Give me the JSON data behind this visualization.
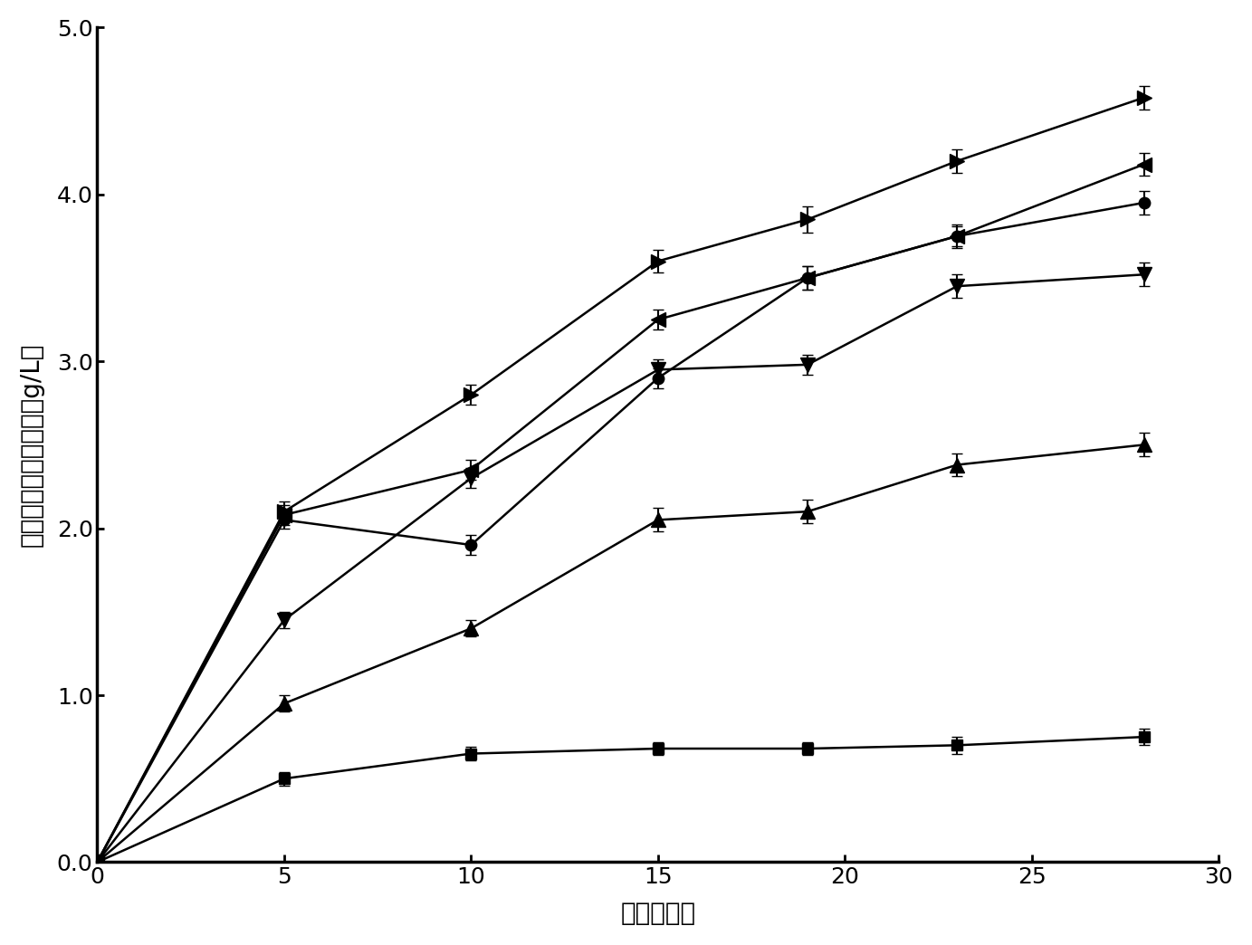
{
  "series": [
    {
      "name": "right_triangle_series",
      "marker": ">",
      "x": [
        0,
        5,
        10,
        15,
        19,
        23,
        28
      ],
      "y": [
        0,
        2.1,
        2.8,
        3.6,
        3.85,
        4.2,
        4.58
      ],
      "yerr": [
        0,
        0.06,
        0.06,
        0.07,
        0.08,
        0.07,
        0.07
      ]
    },
    {
      "name": "left_triangle_series",
      "marker": "<",
      "x": [
        0,
        5,
        10,
        15,
        19,
        23,
        28
      ],
      "y": [
        0,
        2.08,
        2.35,
        3.25,
        3.5,
        3.75,
        4.18
      ],
      "yerr": [
        0,
        0.06,
        0.06,
        0.06,
        0.07,
        0.07,
        0.07
      ]
    },
    {
      "name": "circle_series",
      "marker": "o",
      "x": [
        0,
        5,
        10,
        15,
        19,
        23,
        28
      ],
      "y": [
        0,
        2.05,
        1.9,
        2.9,
        3.5,
        3.75,
        3.95
      ],
      "yerr": [
        0,
        0.05,
        0.06,
        0.06,
        0.07,
        0.06,
        0.07
      ]
    },
    {
      "name": "down_triangle_series",
      "marker": "v",
      "x": [
        0,
        5,
        10,
        15,
        19,
        23,
        28
      ],
      "y": [
        0,
        1.45,
        2.3,
        2.95,
        2.98,
        3.45,
        3.52
      ],
      "yerr": [
        0,
        0.05,
        0.06,
        0.06,
        0.06,
        0.07,
        0.07
      ]
    },
    {
      "name": "up_triangle_series",
      "marker": "^",
      "x": [
        0,
        5,
        10,
        15,
        19,
        23,
        28
      ],
      "y": [
        0,
        0.95,
        1.4,
        2.05,
        2.1,
        2.38,
        2.5
      ],
      "yerr": [
        0,
        0.05,
        0.05,
        0.07,
        0.07,
        0.07,
        0.07
      ]
    },
    {
      "name": "square_series",
      "marker": "s",
      "x": [
        0,
        5,
        10,
        15,
        19,
        23,
        28
      ],
      "y": [
        0,
        0.5,
        0.65,
        0.68,
        0.68,
        0.7,
        0.75
      ],
      "yerr": [
        0,
        0.04,
        0.04,
        0.04,
        0.04,
        0.05,
        0.05
      ]
    }
  ],
  "xlabel": "时间（天）",
  "ylabel": "浸出液中铜离子浓度（g/L）",
  "xlim": [
    0,
    30
  ],
  "ylim": [
    0.0,
    5.0
  ],
  "xticks": [
    0,
    5,
    10,
    15,
    20,
    25,
    30
  ],
  "yticks": [
    0.0,
    1.0,
    2.0,
    3.0,
    4.0,
    5.0
  ],
  "ytick_labels": [
    "0.0",
    "1.0",
    "2.0",
    "3.0",
    "4.0",
    "5.0"
  ],
  "xtick_labels": [
    "0",
    "5",
    "10",
    "15",
    "20",
    "25",
    "30"
  ],
  "color": "#000000",
  "linewidth": 1.8,
  "capsize": 4,
  "elinewidth": 1.5,
  "spine_linewidth": 2.5,
  "figsize": [
    13.83,
    10.44
  ],
  "dpi": 100
}
